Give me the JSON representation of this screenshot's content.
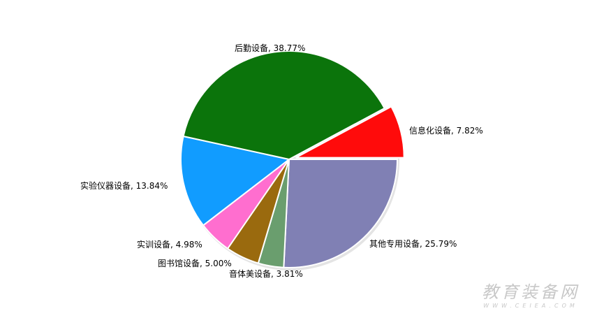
{
  "chart_data": {
    "type": "pie",
    "slices": [
      {
        "label": "其他专用设备",
        "value": 25.79,
        "color": "#8080b4"
      },
      {
        "label": "音体美设备",
        "value": 3.81,
        "color": "#6a9e6e"
      },
      {
        "label": "图书馆设备",
        "value": 5.0,
        "color": "#9a6a0e"
      },
      {
        "label": "实训设备",
        "value": 4.98,
        "color": "#ff6ecf"
      },
      {
        "label": "实验仪器设备",
        "value": 13.84,
        "color": "#119cff"
      },
      {
        "label": "后勤设备",
        "value": 38.77,
        "color": "#0b740b"
      },
      {
        "label": "信息化设备",
        "value": 7.82,
        "color": "#ff0b0b",
        "exploded": true
      }
    ],
    "label_format": "{label}, {value}%"
  },
  "watermark": {
    "title": "教育装备网",
    "url": "WWW.CEIEA.COM"
  }
}
